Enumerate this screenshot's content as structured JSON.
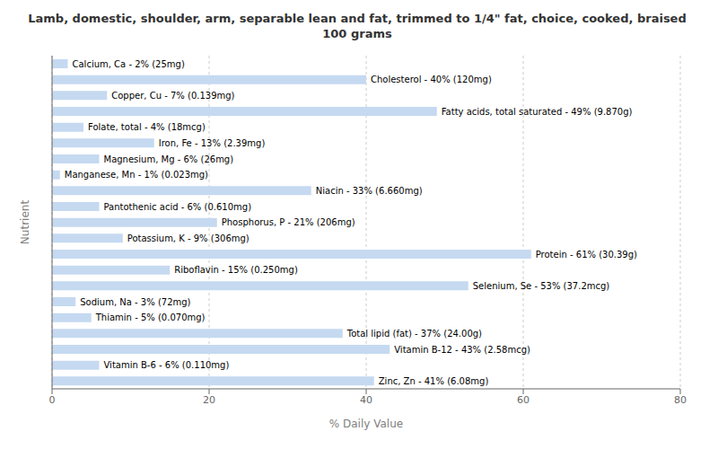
{
  "chart_data": {
    "type": "bar",
    "orientation": "horizontal",
    "title": "Lamb, domestic, shoulder, arm, separable lean and fat, trimmed to 1/4\" fat, choice, cooked, braised\n100 grams",
    "xlabel": "% Daily Value",
    "ylabel": "Nutrient",
    "categories": [
      "Calcium, Ca - 2% (25mg)",
      "Cholesterol - 40% (120mg)",
      "Copper, Cu - 7% (0.139mg)",
      "Fatty acids, total saturated - 49% (9.870g)",
      "Folate, total - 4% (18mcg)",
      "Iron, Fe - 13% (2.39mg)",
      "Magnesium, Mg - 6% (26mg)",
      "Manganese, Mn - 1% (0.023mg)",
      "Niacin - 33% (6.660mg)",
      "Pantothenic acid - 6% (0.610mg)",
      "Phosphorus, P - 21% (206mg)",
      "Potassium, K - 9% (306mg)",
      "Protein - 61% (30.39g)",
      "Riboflavin - 15% (0.250mg)",
      "Selenium, Se - 53% (37.2mcg)",
      "Sodium, Na - 3% (72mg)",
      "Thiamin - 5% (0.070mg)",
      "Total lipid (fat) - 37% (24.00g)",
      "Vitamin B-12 - 43% (2.58mcg)",
      "Vitamin B-6 - 6% (0.110mg)",
      "Zinc, Zn - 41% (6.08mg)"
    ],
    "values": [
      2,
      40,
      7,
      49,
      4,
      13,
      6,
      1,
      33,
      6,
      21,
      9,
      61,
      15,
      53,
      3,
      5,
      37,
      43,
      6,
      41
    ],
    "color": "#c5d9f1",
    "xlim": [
      0,
      80
    ],
    "xticks": [
      0,
      20,
      40,
      60,
      80
    ],
    "grid": true,
    "tick_labels": "x"
  }
}
